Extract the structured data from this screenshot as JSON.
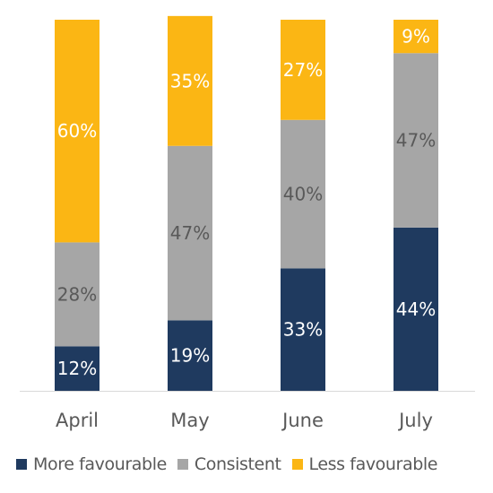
{
  "chart_data": {
    "type": "bar",
    "stacked": true,
    "categories": [
      "April",
      "May",
      "June",
      "July"
    ],
    "series": [
      {
        "name": "More favourable",
        "color": "#1f3a5f",
        "label_color": "#ffffff",
        "values": [
          12,
          19,
          33,
          44
        ]
      },
      {
        "name": "Consistent",
        "color": "#a6a6a6",
        "label_color": "#595959",
        "values": [
          28,
          47,
          40,
          47
        ]
      },
      {
        "name": "Less favourable",
        "color": "#fbb614",
        "label_color": "#ffffff",
        "values": [
          60,
          35,
          27,
          9
        ]
      }
    ],
    "value_suffix": "%",
    "ylim": [
      0,
      100
    ],
    "legend_position": "bottom",
    "grid": false
  }
}
